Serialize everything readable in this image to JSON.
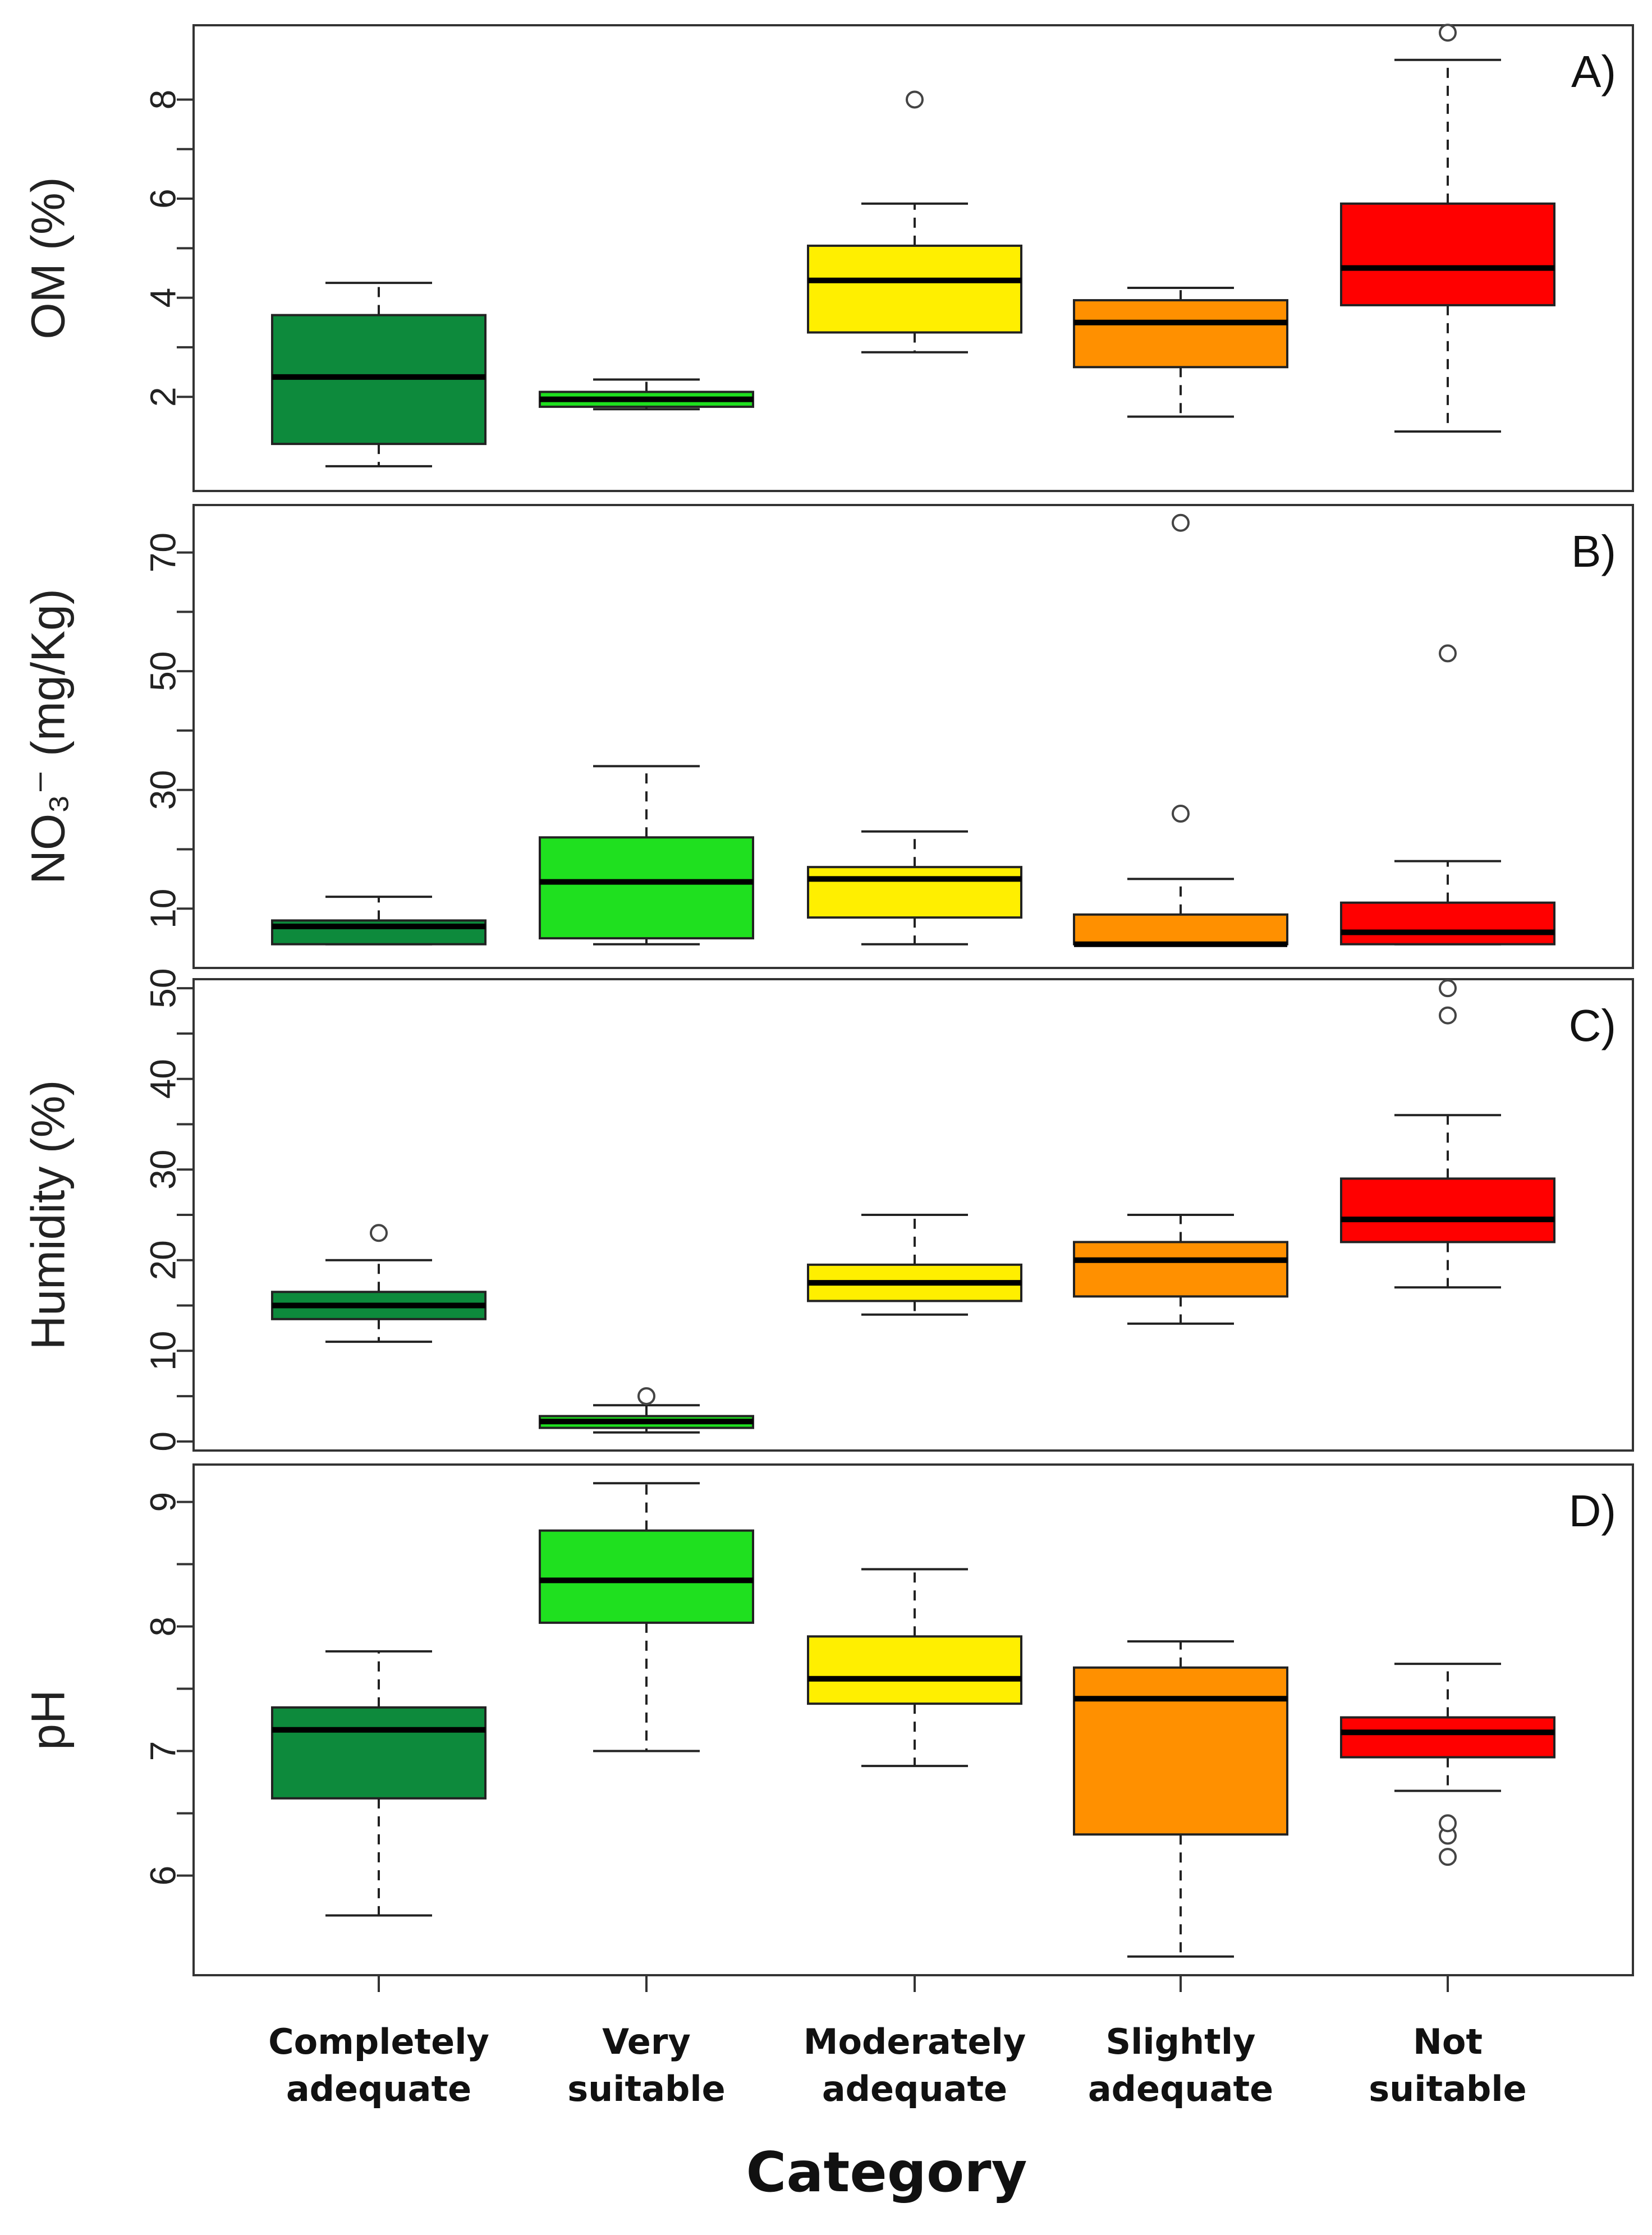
{
  "chart_data": {
    "type": "boxplot",
    "xlabel": "Category",
    "categories": [
      "Completely adequate",
      "Very suitable",
      "Moderately adequate",
      "Slightly adequate",
      "Not suitable"
    ],
    "category_lines": [
      [
        "Completely",
        "adequate"
      ],
      [
        "Very",
        "suitable"
      ],
      [
        "Moderately",
        "adequate"
      ],
      [
        "Slightly",
        "adequate"
      ],
      [
        "Not",
        "suitable"
      ]
    ],
    "colors": [
      "#0d8a3c",
      "#1fe01f",
      "#ffef00",
      "#ff9000",
      "#ff0000"
    ],
    "median_color": "#000000",
    "grid": false,
    "panels": [
      {
        "panel_label": "A)",
        "ylabel": "OM (%)",
        "ylim": [
          0.1,
          9.5
        ],
        "yticks": [
          2,
          4,
          6,
          8
        ],
        "boxes": [
          {
            "whisker_low": 0.6,
            "q1": 1.05,
            "median": 2.4,
            "q3": 3.65,
            "whisker_high": 4.3,
            "outliers": []
          },
          {
            "whisker_low": 1.75,
            "q1": 1.8,
            "median": 1.95,
            "q3": 2.1,
            "whisker_high": 2.35,
            "outliers": []
          },
          {
            "whisker_low": 2.9,
            "q1": 3.3,
            "median": 4.35,
            "q3": 5.05,
            "whisker_high": 5.9,
            "outliers": [
              8.0
            ]
          },
          {
            "whisker_low": 1.6,
            "q1": 2.6,
            "median": 3.5,
            "q3": 3.95,
            "whisker_high": 4.2,
            "outliers": []
          },
          {
            "whisker_low": 1.3,
            "q1": 3.85,
            "median": 4.6,
            "q3": 5.9,
            "whisker_high": 8.8,
            "outliers": [
              9.35
            ]
          }
        ]
      },
      {
        "panel_label": "B)",
        "ylabel": "NO₃⁻ (mg/Kg)",
        "ylim": [
          0,
          78
        ],
        "yticks": [
          10,
          30,
          50,
          70
        ],
        "boxes": [
          {
            "whisker_low": 4,
            "q1": 4,
            "median": 7,
            "q3": 8,
            "whisker_high": 12,
            "outliers": []
          },
          {
            "whisker_low": 4,
            "q1": 5,
            "median": 14.5,
            "q3": 22,
            "whisker_high": 34,
            "outliers": []
          },
          {
            "whisker_low": 4,
            "q1": 8.5,
            "median": 15,
            "q3": 17,
            "whisker_high": 23,
            "outliers": []
          },
          {
            "whisker_low": 4,
            "q1": 4,
            "median": 4,
            "q3": 9,
            "whisker_high": 15,
            "outliers": [
              26,
              75
            ]
          },
          {
            "whisker_low": 4,
            "q1": 4,
            "median": 6,
            "q3": 11,
            "whisker_high": 18,
            "outliers": [
              53
            ]
          }
        ]
      },
      {
        "panel_label": "C)",
        "ylabel": "Humidity (%)",
        "ylim": [
          -1,
          51
        ],
        "yticks": [
          0,
          10,
          20,
          30,
          40,
          50
        ],
        "boxes": [
          {
            "whisker_low": 11,
            "q1": 13.5,
            "median": 15,
            "q3": 16.5,
            "whisker_high": 20,
            "outliers": [
              23
            ]
          },
          {
            "whisker_low": 1,
            "q1": 1.5,
            "median": 2.2,
            "q3": 2.8,
            "whisker_high": 4,
            "outliers": [
              5
            ]
          },
          {
            "whisker_low": 14,
            "q1": 15.5,
            "median": 17.5,
            "q3": 19.5,
            "whisker_high": 25,
            "outliers": []
          },
          {
            "whisker_low": 13,
            "q1": 16,
            "median": 20,
            "q3": 22,
            "whisker_high": 25,
            "outliers": []
          },
          {
            "whisker_low": 17,
            "q1": 22,
            "median": 24.5,
            "q3": 29,
            "whisker_high": 36,
            "outliers": [
              47,
              50
            ]
          }
        ]
      },
      {
        "panel_label": "D)",
        "ylabel": "pH",
        "ylim": [
          5.2,
          9.3
        ],
        "yticks": [
          6,
          7,
          8,
          9
        ],
        "boxes": [
          {
            "whisker_low": 5.68,
            "q1": 6.62,
            "median": 7.17,
            "q3": 7.35,
            "whisker_high": 7.8,
            "outliers": []
          },
          {
            "whisker_low": 7.0,
            "q1": 8.03,
            "median": 8.37,
            "q3": 8.77,
            "whisker_high": 9.15,
            "outliers": []
          },
          {
            "whisker_low": 6.88,
            "q1": 7.38,
            "median": 7.58,
            "q3": 7.92,
            "whisker_high": 8.46,
            "outliers": []
          },
          {
            "whisker_low": 5.35,
            "q1": 6.33,
            "median": 7.42,
            "q3": 7.67,
            "whisker_high": 7.88,
            "outliers": []
          },
          {
            "whisker_low": 6.68,
            "q1": 6.95,
            "median": 7.15,
            "q3": 7.27,
            "whisker_high": 7.7,
            "outliers": [
              6.15,
              6.32,
              6.42
            ]
          }
        ]
      }
    ]
  }
}
